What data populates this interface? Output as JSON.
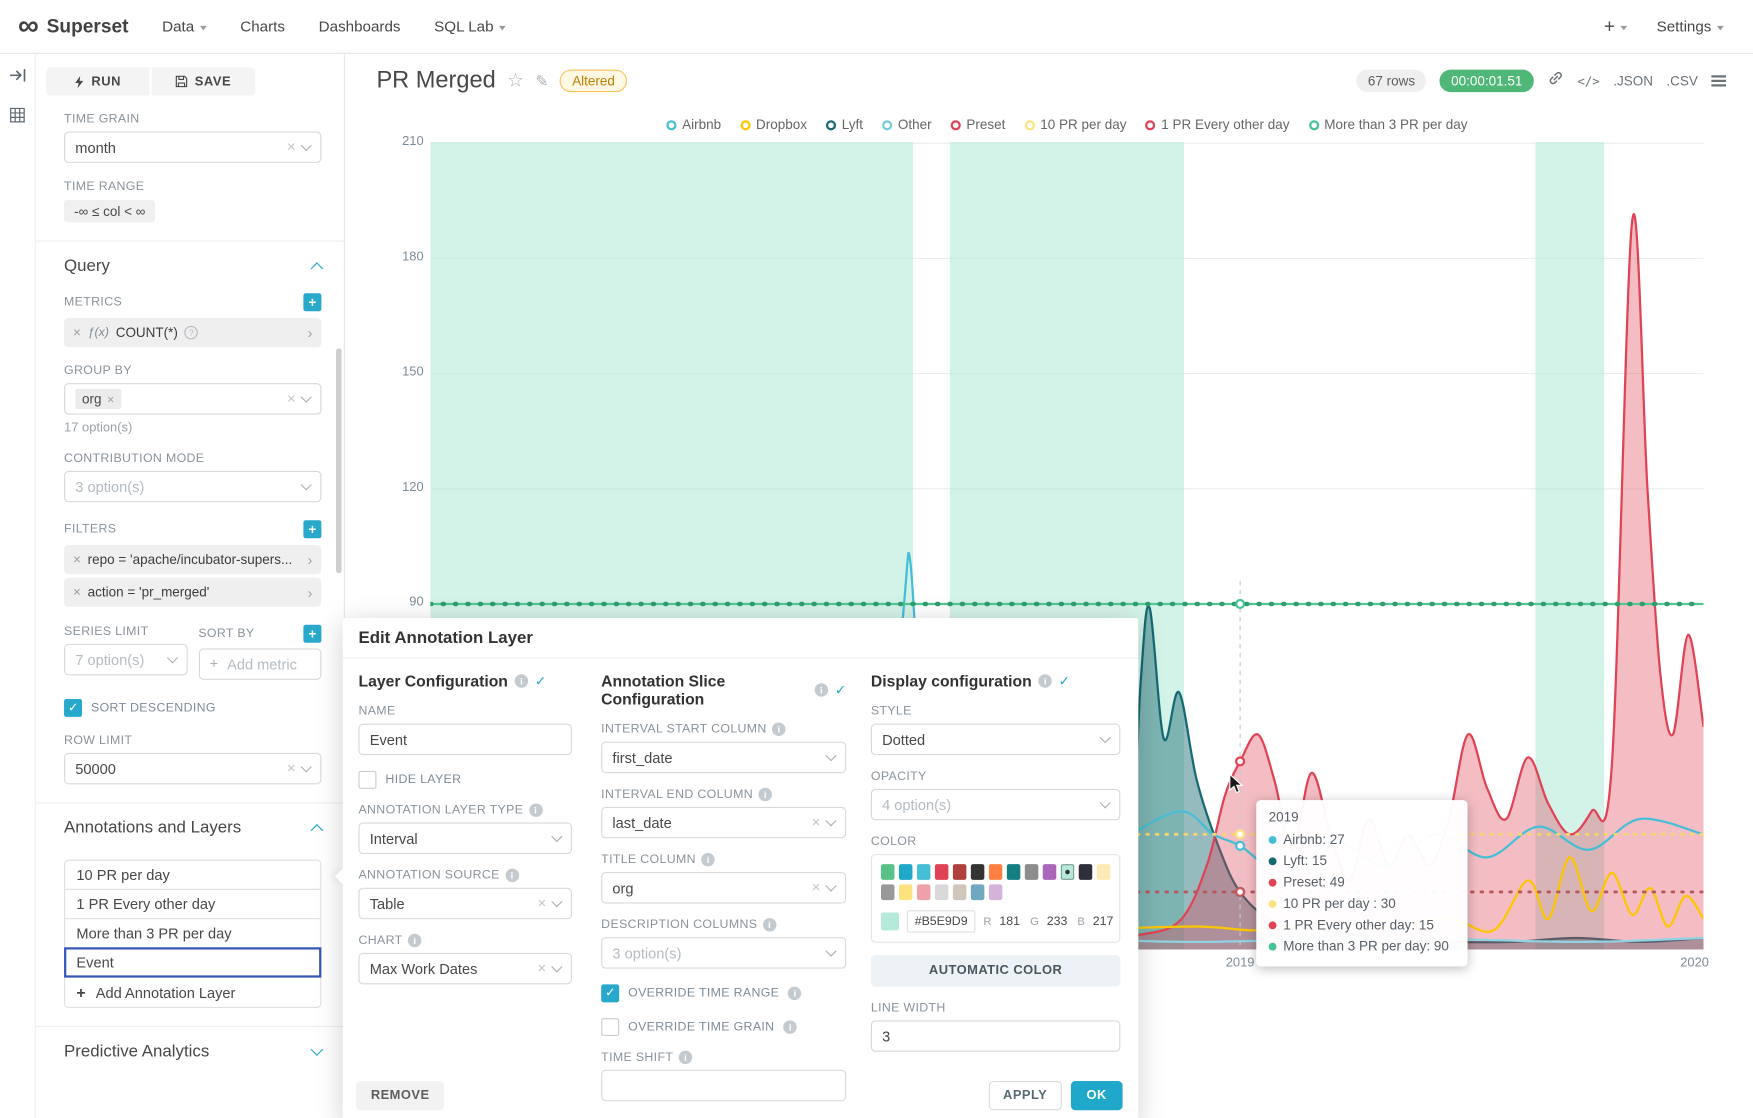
{
  "navbar": {
    "brand": "Superset",
    "items": [
      {
        "label": "Data"
      },
      {
        "label": "Charts"
      },
      {
        "label": "Dashboards"
      },
      {
        "label": "SQL Lab"
      }
    ],
    "settings": "Settings"
  },
  "sidebar": {
    "run_label": "RUN",
    "save_label": "SAVE",
    "time_grain": {
      "label": "TIME GRAIN",
      "value": "month"
    },
    "time_range": {
      "label": "TIME RANGE",
      "value": "-∞ ≤ col < ∞"
    },
    "query": {
      "title": "Query",
      "metrics_label": "METRICS",
      "metric_chip": {
        "fn": "ƒ(x)",
        "value": "COUNT(*)"
      },
      "group_by_label": "GROUP BY",
      "group_by_chip": "org",
      "group_by_hint": "17 option(s)",
      "contribution_label": "CONTRIBUTION MODE",
      "contribution_placeholder": "3 option(s)",
      "filters_label": "FILTERS",
      "filter_chips": [
        "repo = 'apache/incubator-supers...",
        "action = 'pr_merged'"
      ],
      "series_limit_label": "SERIES LIMIT",
      "series_limit_value": "7 option(s)",
      "sort_by_label": "SORT BY",
      "sort_by_placeholder": "Add metric",
      "sort_descending_label": "SORT DESCENDING",
      "row_limit_label": "ROW LIMIT",
      "row_limit_value": "50000"
    },
    "annotations": {
      "title": "Annotations and Layers",
      "layers": [
        "10 PR per day",
        "1 PR Every other day",
        "More than 3 PR per day",
        "Event"
      ],
      "selected_index": 3,
      "add_label": "Add Annotation Layer"
    },
    "predictive_title": "Predictive Analytics"
  },
  "header": {
    "title": "PR Merged",
    "altered_badge": "Altered",
    "rows_badge": "67 rows",
    "timer_badge": "00:00:01.51",
    "json_label": ".JSON",
    "csv_label": ".CSV"
  },
  "legend": {
    "items": [
      {
        "label": "Airbnb",
        "color": "#45BED6"
      },
      {
        "label": "Dropbox",
        "color": "#FCC700"
      },
      {
        "label": "Lyft",
        "color": "#156972"
      },
      {
        "label": "Other",
        "color": "#74CBDE"
      },
      {
        "label": "Preset",
        "color": "#E04355"
      },
      {
        "label": "10 PR per day",
        "color": "#FDE380"
      },
      {
        "label": "1 PR Every other day",
        "color": "#E04355"
      },
      {
        "label": "More than 3 PR per day",
        "color": "#45C396"
      }
    ]
  },
  "tooltip": {
    "title": "2019",
    "rows": [
      {
        "text": "Airbnb: 27",
        "color": "#45BED6"
      },
      {
        "text": "Lyft: 15",
        "color": "#156972"
      },
      {
        "text": "Preset: 49",
        "color": "#E04355"
      },
      {
        "text": "10 PR per day : 30",
        "color": "#FDE380"
      },
      {
        "text": "1 PR Every other day: 15",
        "color": "#E04355"
      },
      {
        "text": "More than 3 PR per day: 90",
        "color": "#45C396"
      }
    ]
  },
  "modal": {
    "title": "Edit Annotation Layer",
    "layer_config": {
      "title": "Layer Configuration",
      "name_label": "NAME",
      "name_value": "Event",
      "hide_layer_label": "HIDE LAYER",
      "type_label": "ANNOTATION LAYER TYPE",
      "type_value": "Interval",
      "source_label": "ANNOTATION SOURCE",
      "source_value": "Table",
      "chart_label": "CHART",
      "chart_value": "Max Work Dates"
    },
    "slice_config": {
      "title": "Annotation Slice Configuration",
      "interval_start_label": "INTERVAL START COLUMN",
      "interval_start_value": "first_date",
      "interval_end_label": "INTERVAL END COLUMN",
      "interval_end_value": "last_date",
      "title_column_label": "TITLE COLUMN",
      "title_column_value": "org",
      "description_label": "DESCRIPTION COLUMNS",
      "description_placeholder": "3 option(s)",
      "override_time_range_label": "OVERRIDE TIME RANGE",
      "override_time_grain_label": "OVERRIDE TIME GRAIN",
      "time_shift_label": "TIME SHIFT",
      "time_shift_value": ""
    },
    "display_config": {
      "title": "Display configuration",
      "style_label": "STYLE",
      "style_value": "Dotted",
      "opacity_label": "OPACITY",
      "opacity_placeholder": "4 option(s)",
      "color_label": "COLOR",
      "swatches": [
        "#5AC189",
        "#1FA8C9",
        "#45BED6",
        "#E04355",
        "#B0413E",
        "#333333",
        "#FF7F44",
        "#147E82",
        "#8C8C8C",
        "#A868B7",
        "#B5E9D9",
        "#2F2F3B",
        "#FCE9B6",
        "#999999",
        "#FDE380",
        "#EFA1AA",
        "#D9D9D9",
        "#D1C6BC",
        "#6FA8BF",
        "#D3B3DA"
      ],
      "selected_swatch": "#B5E9D9",
      "hex_value": "#B5E9D9",
      "r_label": "R",
      "r_value": "181",
      "g_label": "G",
      "g_value": "233",
      "b_label": "B",
      "b_value": "217",
      "auto_color_label": "AUTOMATIC COLOR",
      "line_width_label": "LINE WIDTH",
      "line_width_value": "3"
    },
    "remove_label": "REMOVE",
    "apply_label": "APPLY",
    "ok_label": "OK"
  },
  "colors": {
    "accent": "#1FA8C9",
    "interval_band": "#B5E9D9",
    "annotation_selected_border": "#3656B8",
    "timer_badge_bg": "#4FB878",
    "altered_text": "#BE7C02"
  },
  "chart_data": {
    "type": "line",
    "title": "PR Merged",
    "ylim": [
      0,
      210
    ],
    "y_ticks": [
      210,
      180,
      150,
      120,
      90
    ],
    "x_tick_labels": [
      {
        "label": "2019",
        "f": 0.636
      },
      {
        "label": "2020",
        "f": 0.993
      }
    ],
    "grid": true,
    "legend_position": "top",
    "band_color": "rgba(181,233,217,0.6)",
    "interval_bands": [
      [
        0,
        0.379
      ],
      [
        0.408,
        0.592
      ],
      [
        0.868,
        0.922
      ]
    ],
    "hover": {
      "f": 0.636,
      "label": "2019",
      "values": {
        "Airbnb": 27,
        "Lyft": 15,
        "Preset": 49,
        "10 PR per day": 30,
        "1 PR Every other day": 15,
        "More than 3 PR per day": 90
      }
    },
    "hover_dots": [
      {
        "value": 90,
        "color": "#45C396"
      },
      {
        "value": 49,
        "color": "#E04355"
      },
      {
        "value": 30,
        "color": "#FDE380"
      },
      {
        "value": 27,
        "color": "#45BED6"
      },
      {
        "value": 15,
        "color": "#156972"
      },
      {
        "value": 15,
        "color": "#C65A5F"
      }
    ],
    "formula_annotations": [
      {
        "name": "10 PR per day",
        "value": 30,
        "style": "dotted",
        "color": "#F5D66E"
      },
      {
        "name": "1 PR Every other day",
        "value": 15,
        "style": "dotted",
        "color": "#B8575C"
      },
      {
        "name": "More than 3 PR per day",
        "value": 90,
        "style": "dotted",
        "color": "#45C396"
      }
    ],
    "interval_annotation": {
      "name": "Event",
      "source": "Table",
      "color": "#B5E9D9"
    },
    "series": [
      {
        "name": "Lyft",
        "color": "#156972",
        "fill": "rgba(21,105,114,0.45)",
        "points": [
          [
            0,
            2
          ],
          [
            0.08,
            3
          ],
          [
            0.16,
            2
          ],
          [
            0.24,
            4
          ],
          [
            0.32,
            3
          ],
          [
            0.4,
            4
          ],
          [
            0.48,
            5
          ],
          [
            0.53,
            6
          ],
          [
            0.548,
            12
          ],
          [
            0.558,
            70
          ],
          [
            0.565,
            89
          ],
          [
            0.576,
            55
          ],
          [
            0.588,
            67
          ],
          [
            0.602,
            44
          ],
          [
            0.62,
            26
          ],
          [
            0.636,
            15
          ],
          [
            0.66,
            8
          ],
          [
            0.7,
            5
          ],
          [
            0.75,
            3
          ],
          [
            0.8,
            2
          ],
          [
            0.85,
            2
          ],
          [
            0.9,
            3
          ],
          [
            0.95,
            2
          ],
          [
            1,
            3
          ]
        ]
      },
      {
        "name": "Preset",
        "color": "#E04355",
        "fill": "rgba(224,67,85,0.35)",
        "points": [
          [
            0,
            1
          ],
          [
            0.1,
            2
          ],
          [
            0.2,
            1
          ],
          [
            0.3,
            2
          ],
          [
            0.4,
            2
          ],
          [
            0.5,
            3
          ],
          [
            0.56,
            4
          ],
          [
            0.59,
            8
          ],
          [
            0.61,
            22
          ],
          [
            0.624,
            40
          ],
          [
            0.636,
            49
          ],
          [
            0.65,
            56
          ],
          [
            0.663,
            44
          ],
          [
            0.677,
            26
          ],
          [
            0.692,
            46
          ],
          [
            0.707,
            30
          ],
          [
            0.722,
            18
          ],
          [
            0.737,
            34
          ],
          [
            0.753,
            22
          ],
          [
            0.768,
            30
          ],
          [
            0.785,
            22
          ],
          [
            0.8,
            34
          ],
          [
            0.815,
            56
          ],
          [
            0.83,
            42
          ],
          [
            0.845,
            34
          ],
          [
            0.862,
            50
          ],
          [
            0.878,
            38
          ],
          [
            0.895,
            30
          ],
          [
            0.912,
            36
          ],
          [
            0.928,
            48
          ],
          [
            0.944,
            190
          ],
          [
            0.956,
            120
          ],
          [
            0.966,
            72
          ],
          [
            0.976,
            56
          ],
          [
            0.988,
            82
          ],
          [
            1,
            58
          ]
        ]
      },
      {
        "name": "Airbnb",
        "color": "#45BED6",
        "points": [
          [
            0,
            4
          ],
          [
            0.04,
            7
          ],
          [
            0.08,
            5
          ],
          [
            0.12,
            9
          ],
          [
            0.16,
            13
          ],
          [
            0.2,
            17
          ],
          [
            0.24,
            12
          ],
          [
            0.28,
            18
          ],
          [
            0.32,
            14
          ],
          [
            0.355,
            22
          ],
          [
            0.372,
            90
          ],
          [
            0.377,
            101
          ],
          [
            0.385,
            60
          ],
          [
            0.395,
            28
          ],
          [
            0.43,
            20
          ],
          [
            0.47,
            28
          ],
          [
            0.51,
            22
          ],
          [
            0.55,
            30
          ],
          [
            0.59,
            36
          ],
          [
            0.615,
            30
          ],
          [
            0.636,
            27
          ],
          [
            0.67,
            20
          ],
          [
            0.71,
            28
          ],
          [
            0.75,
            22
          ],
          [
            0.79,
            30
          ],
          [
            0.83,
            24
          ],
          [
            0.87,
            32
          ],
          [
            0.91,
            26
          ],
          [
            0.95,
            34
          ],
          [
            1,
            30
          ]
        ]
      },
      {
        "name": "Dropbox",
        "color": "#FCC700",
        "points": [
          [
            0,
            3
          ],
          [
            0.1,
            4
          ],
          [
            0.2,
            3
          ],
          [
            0.3,
            5
          ],
          [
            0.4,
            4
          ],
          [
            0.5,
            5
          ],
          [
            0.6,
            6
          ],
          [
            0.65,
            5
          ],
          [
            0.7,
            7
          ],
          [
            0.75,
            6
          ],
          [
            0.8,
            8
          ],
          [
            0.835,
            5
          ],
          [
            0.862,
            18
          ],
          [
            0.878,
            8
          ],
          [
            0.895,
            24
          ],
          [
            0.912,
            10
          ],
          [
            0.928,
            20
          ],
          [
            0.944,
            9
          ],
          [
            0.958,
            16
          ],
          [
            0.972,
            6
          ],
          [
            0.986,
            14
          ],
          [
            1,
            8
          ]
        ]
      },
      {
        "name": "Other",
        "color": "#8FD3E4",
        "points": [
          [
            0,
            2
          ],
          [
            0.15,
            3
          ],
          [
            0.3,
            2
          ],
          [
            0.45,
            3
          ],
          [
            0.6,
            2
          ],
          [
            0.75,
            3
          ],
          [
            0.9,
            2
          ],
          [
            1,
            3
          ]
        ]
      }
    ]
  }
}
